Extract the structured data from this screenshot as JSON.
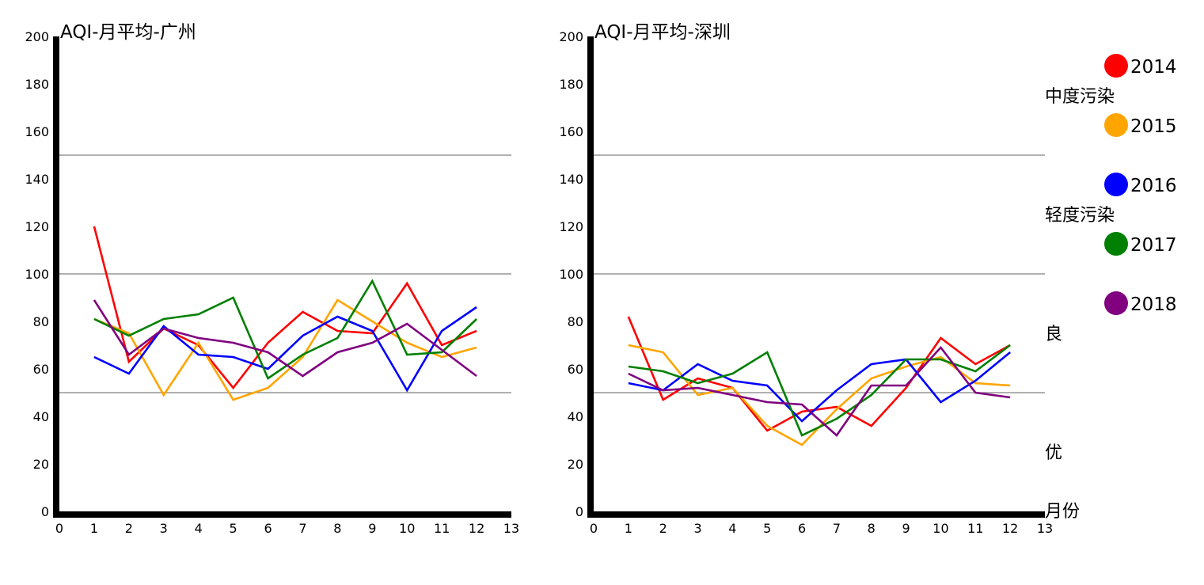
{
  "colors": {
    "2014": "#ff0000",
    "2015": "#ffa500",
    "2016": "#0000ff",
    "2017": "#008000",
    "2018": "#800080",
    "axis": "#000000",
    "threshold": "#808080"
  },
  "legend": [
    "2014",
    "2015",
    "2016",
    "2017",
    "2018"
  ],
  "zone_labels": {
    "moderate": "中度污染",
    "light": "轻度污染",
    "good": "良",
    "excellent": "优"
  },
  "x_axis_label": "月份",
  "chart_data": [
    {
      "type": "line",
      "title": "AQI-月平均-广州",
      "xlim": [
        0,
        13
      ],
      "ylim": [
        0,
        200
      ],
      "xticks": [
        0,
        1,
        2,
        3,
        4,
        5,
        6,
        7,
        8,
        9,
        10,
        11,
        12,
        13
      ],
      "yticks": [
        0,
        20,
        40,
        60,
        80,
        100,
        120,
        140,
        160,
        180,
        200
      ],
      "thresholds": [
        50,
        100,
        150
      ],
      "x": [
        1,
        2,
        3,
        4,
        5,
        6,
        7,
        8,
        9,
        10,
        11,
        12
      ],
      "series": [
        {
          "name": "2014",
          "values": [
            120,
            63,
            77,
            70,
            52,
            71,
            84,
            76,
            75,
            96,
            70,
            76
          ]
        },
        {
          "name": "2015",
          "values": [
            81,
            75,
            49,
            71,
            47,
            52,
            65,
            89,
            80,
            71,
            65,
            69
          ]
        },
        {
          "name": "2016",
          "values": [
            65,
            58,
            78,
            66,
            65,
            60,
            74,
            82,
            76,
            51,
            76,
            86
          ]
        },
        {
          "name": "2017",
          "values": [
            81,
            74,
            81,
            83,
            90,
            56,
            66,
            73,
            97,
            66,
            67,
            81
          ]
        },
        {
          "name": "2018",
          "values": [
            89,
            66,
            77,
            73,
            71,
            67,
            57,
            67,
            71,
            79,
            68,
            57
          ]
        }
      ]
    },
    {
      "type": "line",
      "title": "AQI-月平均-深圳",
      "xlim": [
        0,
        13
      ],
      "ylim": [
        0,
        200
      ],
      "xticks": [
        0,
        1,
        2,
        3,
        4,
        5,
        6,
        7,
        8,
        9,
        10,
        11,
        12,
        13
      ],
      "yticks": [
        0,
        20,
        40,
        60,
        80,
        100,
        120,
        140,
        160,
        180,
        200
      ],
      "thresholds": [
        50,
        100,
        150
      ],
      "x": [
        1,
        2,
        3,
        4,
        5,
        6,
        7,
        8,
        9,
        10,
        11,
        12
      ],
      "series": [
        {
          "name": "2014",
          "values": [
            82,
            47,
            56,
            52,
            34,
            42,
            44,
            36,
            52,
            73,
            62,
            70
          ]
        },
        {
          "name": "2015",
          "values": [
            70,
            67,
            49,
            52,
            36,
            28,
            43,
            56,
            61,
            65,
            54,
            53
          ]
        },
        {
          "name": "2016",
          "values": [
            54,
            51,
            62,
            55,
            53,
            38,
            51,
            62,
            64,
            46,
            55,
            67
          ]
        },
        {
          "name": "2017",
          "values": [
            61,
            59,
            54,
            58,
            67,
            32,
            39,
            49,
            64,
            64,
            59,
            70
          ]
        },
        {
          "name": "2018",
          "values": [
            58,
            51,
            52,
            49,
            46,
            45,
            32,
            53,
            53,
            69,
            50,
            48
          ]
        }
      ]
    }
  ]
}
